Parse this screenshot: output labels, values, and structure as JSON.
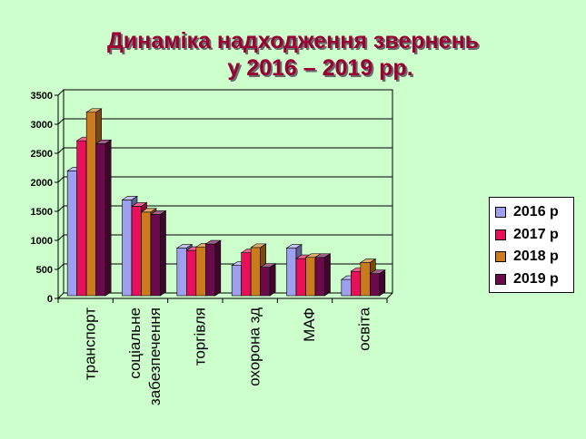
{
  "chart_data": {
    "type": "bar",
    "title_line1": "Динаміка надходження звернень",
    "title_line2": "у 2016 – 2019 рр.",
    "categories": [
      "транспорт",
      "соціальне забезпечення",
      "торгівля",
      "охорона зд",
      "МАФ",
      "освіта"
    ],
    "category_lines": [
      [
        "транспорт"
      ],
      [
        "соціальне",
        "забезпечення"
      ],
      [
        "торгівля"
      ],
      [
        "охорона зд"
      ],
      [
        "МАФ"
      ],
      [
        "освіта"
      ]
    ],
    "series": [
      {
        "name": "2016 р",
        "color": "#9f9fef",
        "values": [
          2150,
          1650,
          820,
          520,
          820,
          280
        ]
      },
      {
        "name": "2017 р",
        "color": "#e8105a",
        "values": [
          2670,
          1540,
          780,
          740,
          640,
          420
        ]
      },
      {
        "name": "2018 р",
        "color": "#cc7a1e",
        "values": [
          3160,
          1440,
          840,
          830,
          660,
          570
        ]
      },
      {
        "name": "2019 р",
        "color": "#6b0a4a",
        "values": [
          2620,
          1400,
          890,
          490,
          660,
          380
        ]
      }
    ],
    "ylim": [
      0,
      3500
    ],
    "yticks": [
      "0",
      "500",
      "1000",
      "1500",
      "2000",
      "2500",
      "3000",
      "3500"
    ],
    "grid": true,
    "legend": "right"
  }
}
